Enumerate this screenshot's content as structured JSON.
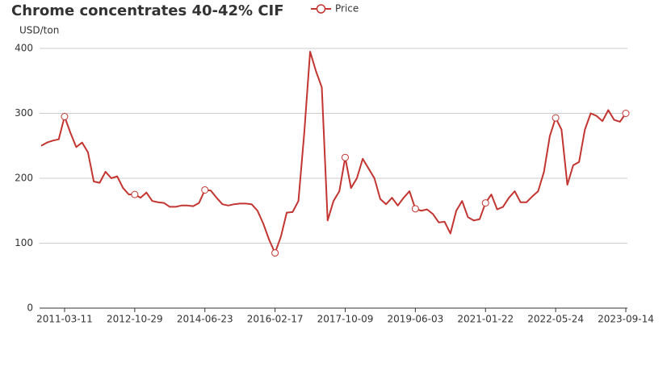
{
  "chart_data": {
    "type": "line",
    "title": "Chrome concentrates 40-42% CIF",
    "y_label": "USD/ton",
    "categories": [
      null,
      null,
      null,
      null,
      "2011-03-11",
      null,
      null,
      null,
      null,
      null,
      null,
      null,
      null,
      null,
      null,
      null,
      "2012-10-29",
      null,
      null,
      null,
      null,
      null,
      null,
      null,
      null,
      null,
      null,
      null,
      "2014-06-23",
      null,
      null,
      null,
      null,
      null,
      null,
      null,
      null,
      null,
      null,
      null,
      "2016-02-17",
      null,
      null,
      null,
      null,
      null,
      null,
      null,
      null,
      null,
      null,
      null,
      "2017-10-09",
      null,
      null,
      null,
      null,
      null,
      null,
      null,
      null,
      null,
      null,
      null,
      "2019-06-03",
      null,
      null,
      null,
      null,
      null,
      null,
      null,
      null,
      null,
      null,
      null,
      "2021-01-22",
      null,
      null,
      null,
      null,
      null,
      null,
      null,
      null,
      null,
      null,
      null,
      "2022-05-24",
      null,
      null,
      null,
      null,
      null,
      null,
      null,
      null,
      null,
      null,
      null,
      "2023-09-14"
    ],
    "series": [
      {
        "name": "Price",
        "color": "#c23531",
        "values": [
          250,
          255,
          258,
          260,
          295,
          270,
          248,
          255,
          240,
          195,
          193,
          210,
          200,
          203,
          185,
          175,
          175,
          170,
          178,
          165,
          163,
          162,
          156,
          156,
          158,
          158,
          157,
          162,
          182,
          181,
          170,
          160,
          158,
          160,
          161,
          161,
          160,
          150,
          130,
          105,
          85,
          110,
          147,
          148,
          165,
          270,
          395,
          365,
          340,
          135,
          165,
          180,
          232,
          185,
          200,
          230,
          215,
          200,
          168,
          160,
          170,
          158,
          170,
          180,
          153,
          150,
          152,
          145,
          132,
          133,
          115,
          150,
          165,
          140,
          135,
          137,
          162,
          175,
          152,
          156,
          170,
          180,
          163,
          163,
          172,
          180,
          210,
          265,
          293,
          275,
          190,
          220,
          225,
          275,
          300,
          296,
          288,
          305,
          290,
          287,
          300
        ]
      }
    ],
    "ylim": [
      0,
      400
    ],
    "yticks": [
      0,
      100,
      200,
      300,
      400
    ],
    "grid": true
  }
}
